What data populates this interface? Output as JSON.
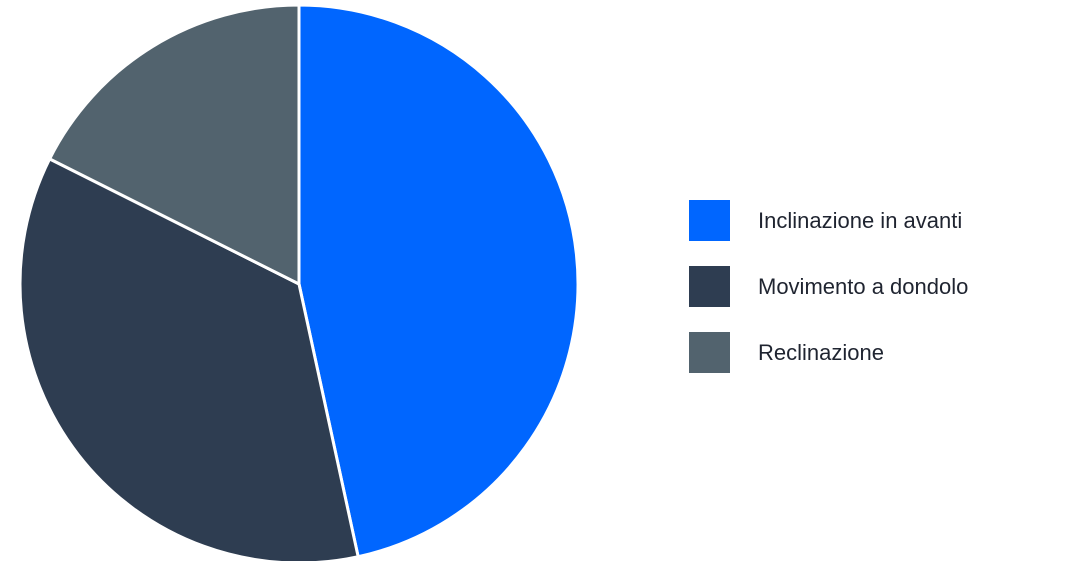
{
  "chart_data": {
    "type": "pie",
    "title": "",
    "start_angle_deg": 0,
    "direction": "clockwise",
    "legend_position": "right",
    "series": [
      {
        "name": "Inclinazione in avanti",
        "value": 46.6,
        "color": "#0066ff"
      },
      {
        "name": "Movimento a dondolo",
        "value": 35.8,
        "color": "#2e3d51"
      },
      {
        "name": "Reclinazione",
        "value": 17.6,
        "color": "#52636e"
      }
    ]
  }
}
